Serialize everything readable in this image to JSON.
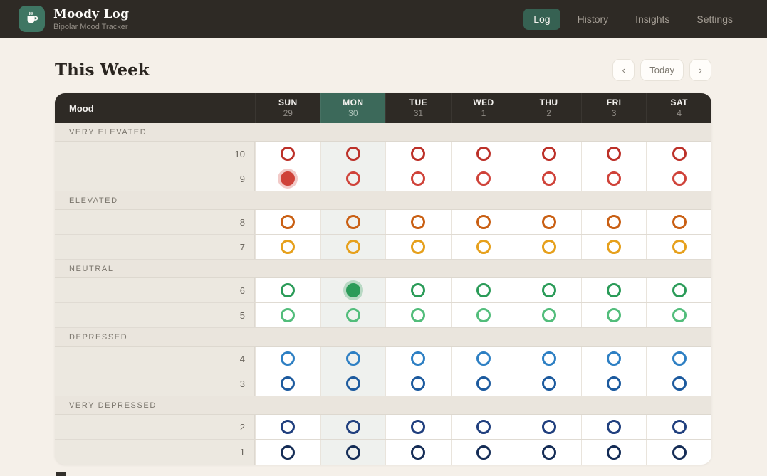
{
  "appbar": {
    "app_title": "Moody Log",
    "app_subtitle": "Bipolar Mood Tracker",
    "nav": [
      {
        "label": "Log",
        "active": true
      },
      {
        "label": "History",
        "active": false
      },
      {
        "label": "Insights",
        "active": false
      },
      {
        "label": "Settings",
        "active": false
      }
    ]
  },
  "page": {
    "title": "This Week",
    "prev_label": "‹",
    "today_label": "Today",
    "next_label": "›"
  },
  "grid": {
    "corner_label": "Mood",
    "days": [
      {
        "name": "SUN",
        "date": "29",
        "today": false
      },
      {
        "name": "MON",
        "date": "30",
        "today": true
      },
      {
        "name": "TUE",
        "date": "31",
        "today": false
      },
      {
        "name": "WED",
        "date": "1",
        "today": false
      },
      {
        "name": "THU",
        "date": "2",
        "today": false
      },
      {
        "name": "FRI",
        "date": "3",
        "today": false
      },
      {
        "name": "SAT",
        "date": "4",
        "today": false
      }
    ],
    "groups": [
      {
        "label": "VERY ELEVATED",
        "rows": [
          {
            "value": "10",
            "color": "#bc3028"
          },
          {
            "value": "9",
            "color": "#cf4239"
          }
        ]
      },
      {
        "label": "ELEVATED",
        "rows": [
          {
            "value": "8",
            "color": "#c95f13"
          },
          {
            "value": "7",
            "color": "#e6a01c"
          }
        ]
      },
      {
        "label": "NEUTRAL",
        "rows": [
          {
            "value": "6",
            "color": "#2a9b58"
          },
          {
            "value": "5",
            "color": "#52bd7b"
          }
        ]
      },
      {
        "label": "DEPRESSED",
        "rows": [
          {
            "value": "4",
            "color": "#2d7fc3"
          },
          {
            "value": "3",
            "color": "#1c5a9e"
          }
        ]
      },
      {
        "label": "VERY DEPRESSED",
        "rows": [
          {
            "value": "2",
            "color": "#203f7e"
          },
          {
            "value": "1",
            "color": "#142c56"
          }
        ]
      }
    ],
    "selections": [
      {
        "day": "SUN",
        "value": "9"
      },
      {
        "day": "MON",
        "value": "6"
      }
    ]
  },
  "colors": {
    "accent_teal": "#3c695a",
    "nav_active": "#366152",
    "header_bg": "#2e2a25",
    "page_bg": "#f5f0e9"
  }
}
